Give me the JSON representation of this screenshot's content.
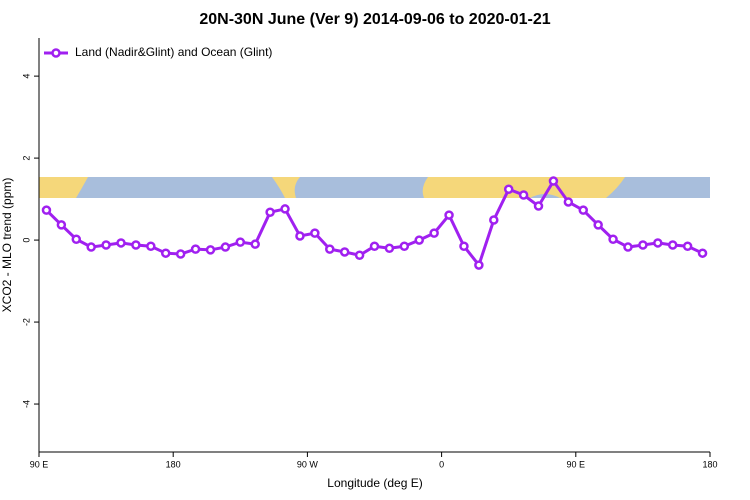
{
  "chart_data": {
    "type": "line",
    "title": "20N-30N June (Ver 9)   2014-09-06 to 2020-01-21",
    "x_label": "Longitude (deg E)",
    "y_label": "XCO2 - MLO trend (ppm)",
    "x": [
      95,
      105,
      115,
      125,
      135,
      145,
      155,
      165,
      175,
      185,
      195,
      205,
      215,
      225,
      235,
      245,
      255,
      265,
      275,
      285,
      295,
      305,
      315,
      325,
      335,
      345,
      355,
      365,
      375,
      385,
      395,
      405,
      415,
      425,
      435,
      445,
      455,
      465,
      475,
      485,
      495,
      505,
      515,
      525,
      535
    ],
    "series": [
      {
        "name": "Land (Nadir&Glint) and Ocean (Glint)",
        "color": "#a020f0",
        "values": [
          0.73,
          0.37,
          0.02,
          -0.17,
          -0.12,
          -0.07,
          -0.12,
          -0.15,
          -0.32,
          -0.34,
          -0.22,
          -0.24,
          -0.17,
          -0.05,
          -0.1,
          0.68,
          0.76,
          0.1,
          0.17,
          -0.22,
          -0.29,
          -0.37,
          -0.15,
          -0.2,
          -0.15,
          0,
          0.17,
          0.61,
          -0.15,
          -0.61,
          0.49,
          1.24,
          1.1,
          0.83,
          1.44,
          0.93,
          0.73,
          0.37,
          0.02,
          -0.17,
          -0.12,
          -0.07,
          -0.12,
          -0.15,
          -0.32
        ]
      }
    ],
    "xlim": [
      90,
      540
    ],
    "xticks": [
      {
        "value": 90,
        "label": "90 E"
      },
      180,
      {
        "value": 270,
        "label": "90 W"
      },
      {
        "value": 360,
        "label": "0"
      },
      {
        "value": 450,
        "label": "90 E"
      },
      {
        "value": 540,
        "label": "180"
      }
    ],
    "ylim": [
      -5.17,
      4.93
    ],
    "yticks": [
      -4,
      -2,
      0,
      2,
      4
    ],
    "legend": "top-left"
  }
}
